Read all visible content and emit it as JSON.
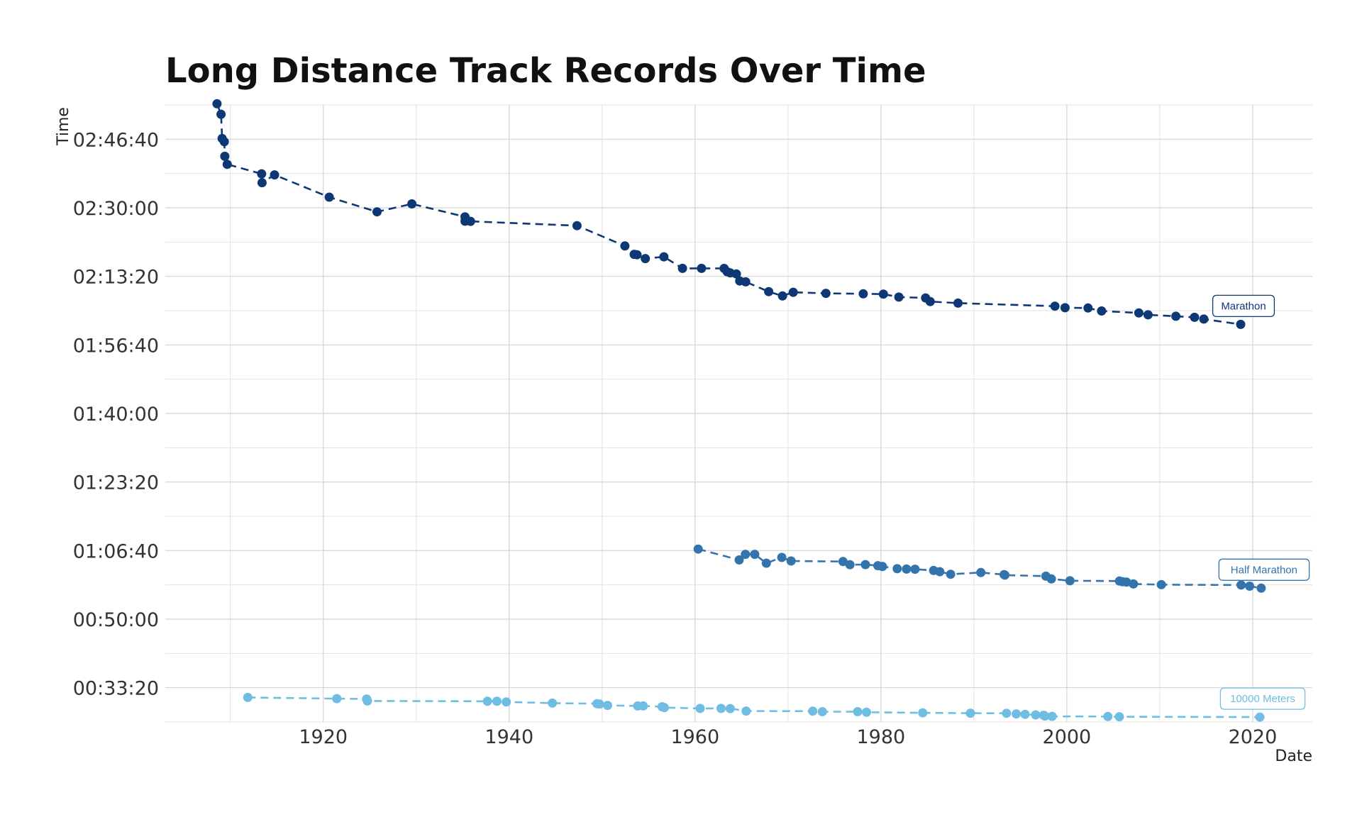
{
  "chart_data": {
    "type": "line",
    "title": "Long Distance Track Records Over Time",
    "xlabel": "Date",
    "ylabel": "Time",
    "x_ticks": [
      "1920",
      "1940",
      "1960",
      "1980",
      "2000",
      "2020"
    ],
    "y_ticks": [
      "00:33:20",
      "00:50:00",
      "01:06:40",
      "01:23:20",
      "01:40:00",
      "01:56:40",
      "02:13:20",
      "02:30:00",
      "02:46:40"
    ],
    "xlim": [
      "1903-01-01",
      "2026-06-01"
    ],
    "ylim": [
      "00:25:00",
      "02:55:00"
    ],
    "grid": true,
    "line_style": "dashed",
    "legend": "direct labels at right end of each series",
    "series": [
      {
        "name": "Marathon",
        "color": "#0d3875",
        "points": [
          [
            "1908-07-24",
            "02:55:18"
          ],
          [
            "1909-01-01",
            "02:52:45"
          ],
          [
            "1909-02-12",
            "02:46:52"
          ],
          [
            "1909-05-08",
            "02:46:04"
          ],
          [
            "1909-05-26",
            "02:42:31"
          ],
          [
            "1909-08-31",
            "02:40:34"
          ],
          [
            "1913-05-12",
            "02:38:16"
          ],
          [
            "1913-05-31",
            "02:36:06"
          ],
          [
            "1914-10-03",
            "02:38:00"
          ],
          [
            "1920-08-22",
            "02:32:35"
          ],
          [
            "1925-10-12",
            "02:29:01"
          ],
          [
            "1929-07-13",
            "02:30:57"
          ],
          [
            "1935-03-31",
            "02:27:49"
          ],
          [
            "1935-04-03",
            "02:26:44"
          ],
          [
            "1935-11-03",
            "02:26:42"
          ],
          [
            "1947-04-19",
            "02:25:39"
          ],
          [
            "1952-06-14",
            "02:20:43"
          ],
          [
            "1953-06-13",
            "02:18:41"
          ],
          [
            "1953-10-04",
            "02:18:35"
          ],
          [
            "1954-08-24",
            "02:17:39"
          ],
          [
            "1956-08-24",
            "02:18:05"
          ],
          [
            "1958-08-24",
            "02:15:17"
          ],
          [
            "1960-09-10",
            "02:15:17"
          ],
          [
            "1963-02-17",
            "02:15:16"
          ],
          [
            "1963-06-15",
            "02:14:28"
          ],
          [
            "1963-10-13",
            "02:14:10"
          ],
          [
            "1964-06-13",
            "02:13:55"
          ],
          [
            "1964-10-21",
            "02:12:12"
          ],
          [
            "1965-06-12",
            "02:12:00"
          ],
          [
            "1967-12-03",
            "02:09:37"
          ],
          [
            "1969-05-30",
            "02:08:34"
          ],
          [
            "1970-07-23",
            "02:09:28"
          ],
          [
            "1974-01-31",
            "02:09:12"
          ],
          [
            "1978-02-05",
            "02:09:05"
          ],
          [
            "1980-04-06",
            "02:09:01"
          ],
          [
            "1981-12-06",
            "02:08:18"
          ],
          [
            "1984-10-21",
            "02:08:05"
          ],
          [
            "1985-04-20",
            "02:07:12"
          ],
          [
            "1988-04-17",
            "02:06:50"
          ],
          [
            "1998-09-20",
            "02:06:05"
          ],
          [
            "1999-10-24",
            "02:05:42"
          ],
          [
            "2002-04-14",
            "02:05:38"
          ],
          [
            "2003-09-28",
            "02:04:55"
          ],
          [
            "2007-09-30",
            "02:04:26"
          ],
          [
            "2008-09-28",
            "02:03:59"
          ],
          [
            "2011-09-25",
            "02:03:38"
          ],
          [
            "2013-09-29",
            "02:03:23"
          ],
          [
            "2014-09-28",
            "02:02:57"
          ],
          [
            "2018-09-16",
            "02:01:39"
          ]
        ]
      },
      {
        "name": "Half Marathon",
        "color": "#3474ad",
        "points": [
          [
            "1960-05-01",
            "01:07:02"
          ],
          [
            "1964-10-01",
            "01:04:24"
          ],
          [
            "1965-06-01",
            "01:05:45"
          ],
          [
            "1966-06-01",
            "01:05:45"
          ],
          [
            "1967-09-01",
            "01:03:36"
          ],
          [
            "1969-05-01",
            "01:05:00"
          ],
          [
            "1970-05-01",
            "01:04:08"
          ],
          [
            "1975-12-01",
            "01:04:00"
          ],
          [
            "1976-09-01",
            "01:03:13"
          ],
          [
            "1978-05-01",
            "01:03:15"
          ],
          [
            "1979-09-01",
            "01:03:00"
          ],
          [
            "1980-03-01",
            "01:02:48"
          ],
          [
            "1981-10-01",
            "01:02:16"
          ],
          [
            "1982-10-01",
            "01:02:10"
          ],
          [
            "1983-09-01",
            "01:02:08"
          ],
          [
            "1985-09-01",
            "01:01:50"
          ],
          [
            "1986-05-01",
            "01:01:32"
          ],
          [
            "1987-07-01",
            "01:00:55"
          ],
          [
            "1990-10-01",
            "01:01:20"
          ],
          [
            "1993-04-01",
            "01:00:50"
          ],
          [
            "1993-05-01",
            "01:00:42"
          ],
          [
            "1997-10-01",
            "01:00:27"
          ],
          [
            "1998-05-01",
            "00:59:47"
          ],
          [
            "2000-05-01",
            "00:59:20"
          ],
          [
            "2005-09-01",
            "00:59:16"
          ],
          [
            "2006-01-01",
            "00:59:05"
          ],
          [
            "2006-06-01",
            "00:59:00"
          ],
          [
            "2007-03-01",
            "00:58:33"
          ],
          [
            "2010-03-01",
            "00:58:23"
          ],
          [
            "2018-10-01",
            "00:58:18"
          ],
          [
            "2019-09-01",
            "00:58:01"
          ],
          [
            "2020-12-01",
            "00:57:32"
          ]
        ]
      },
      {
        "name": "10000 Meters",
        "color": "#6fbde3",
        "points": [
          [
            "1911-11-16",
            "00:30:58"
          ],
          [
            "1921-06-15",
            "00:30:40"
          ],
          [
            "1924-08-31",
            "00:30:35"
          ],
          [
            "1924-10-01",
            "00:30:06"
          ],
          [
            "1937-08-29",
            "00:30:02"
          ],
          [
            "1938-09-08",
            "00:30:02"
          ],
          [
            "1939-09-08",
            "00:29:52"
          ],
          [
            "1944-08-25",
            "00:29:35"
          ],
          [
            "1949-06-11",
            "00:29:27"
          ],
          [
            "1949-09-22",
            "00:29:21"
          ],
          [
            "1950-08-04",
            "00:29:02"
          ],
          [
            "1953-11-01",
            "00:28:54"
          ],
          [
            "1954-06-01",
            "00:28:54"
          ],
          [
            "1956-06-15",
            "00:28:42"
          ],
          [
            "1956-09-11",
            "00:28:30"
          ],
          [
            "1960-07-18",
            "00:28:18"
          ],
          [
            "1962-10-21",
            "00:28:18"
          ],
          [
            "1963-10-15",
            "00:28:15"
          ],
          [
            "1965-06-30",
            "00:27:39"
          ],
          [
            "1972-09-03",
            "00:27:38"
          ],
          [
            "1973-09-14",
            "00:27:30"
          ],
          [
            "1977-06-30",
            "00:27:30"
          ],
          [
            "1978-06-11",
            "00:27:22"
          ],
          [
            "1984-07-02",
            "00:27:13"
          ],
          [
            "1989-08-18",
            "00:27:08"
          ],
          [
            "1993-07-05",
            "00:27:07"
          ],
          [
            "1994-07-22",
            "00:26:58"
          ],
          [
            "1995-07-05",
            "00:26:52"
          ],
          [
            "1996-08-23",
            "00:26:43"
          ],
          [
            "1997-07-04",
            "00:26:38"
          ],
          [
            "1997-08-22",
            "00:26:27"
          ],
          [
            "1998-06-01",
            "00:26:22"
          ],
          [
            "2004-05-31",
            "00:26:20"
          ],
          [
            "2005-08-26",
            "00:26:17"
          ],
          [
            "2020-10-07",
            "00:26:11"
          ]
        ]
      }
    ]
  }
}
